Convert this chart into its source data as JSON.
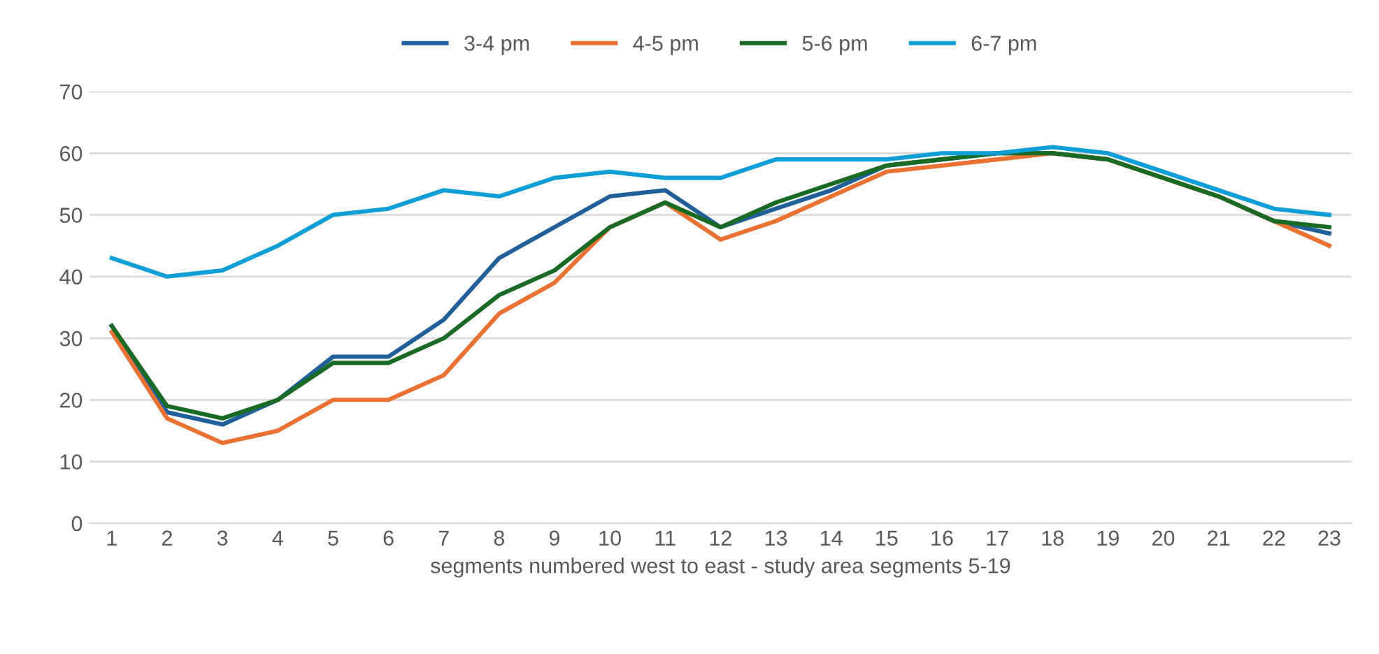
{
  "chart_data": {
    "type": "line",
    "xlabel": "segments numbered west to east - study area segments 5-19",
    "categories": [
      "1",
      "2",
      "3",
      "4",
      "5",
      "6",
      "7",
      "8",
      "9",
      "10",
      "11",
      "12",
      "13",
      "14",
      "15",
      "16",
      "17",
      "18",
      "19",
      "20",
      "21",
      "22",
      "23"
    ],
    "series": [
      {
        "name": "3-4 pm",
        "color": "#215f9a",
        "values": [
          32,
          18,
          16,
          20,
          27,
          27,
          33,
          43,
          48,
          53,
          54,
          48,
          51,
          54,
          58,
          59,
          60,
          60,
          59,
          56,
          53,
          49,
          47
        ]
      },
      {
        "name": "4-5 pm",
        "color": "#e97132",
        "values": [
          31,
          17,
          13,
          15,
          20,
          20,
          24,
          34,
          39,
          48,
          52,
          46,
          49,
          53,
          57,
          58,
          59,
          60,
          59,
          56,
          53,
          49,
          45
        ]
      },
      {
        "name": "5-6 pm",
        "color": "#196b24",
        "values": [
          32,
          19,
          17,
          20,
          26,
          26,
          30,
          37,
          41,
          48,
          52,
          48,
          52,
          55,
          58,
          59,
          60,
          60,
          59,
          56,
          53,
          49,
          48
        ]
      },
      {
        "name": "6-7 pm",
        "color": "#0f9ed5",
        "values": [
          43,
          40,
          41,
          45,
          50,
          51,
          54,
          53,
          56,
          57,
          56,
          56,
          59,
          59,
          59,
          60,
          60,
          61,
          60,
          57,
          54,
          51,
          50
        ]
      }
    ],
    "ylim": [
      0,
      70
    ],
    "yticks": [
      0,
      10,
      20,
      30,
      40,
      50,
      60,
      70
    ],
    "grid": "y",
    "legend": "top",
    "marker": "none",
    "line_style": "solid"
  }
}
